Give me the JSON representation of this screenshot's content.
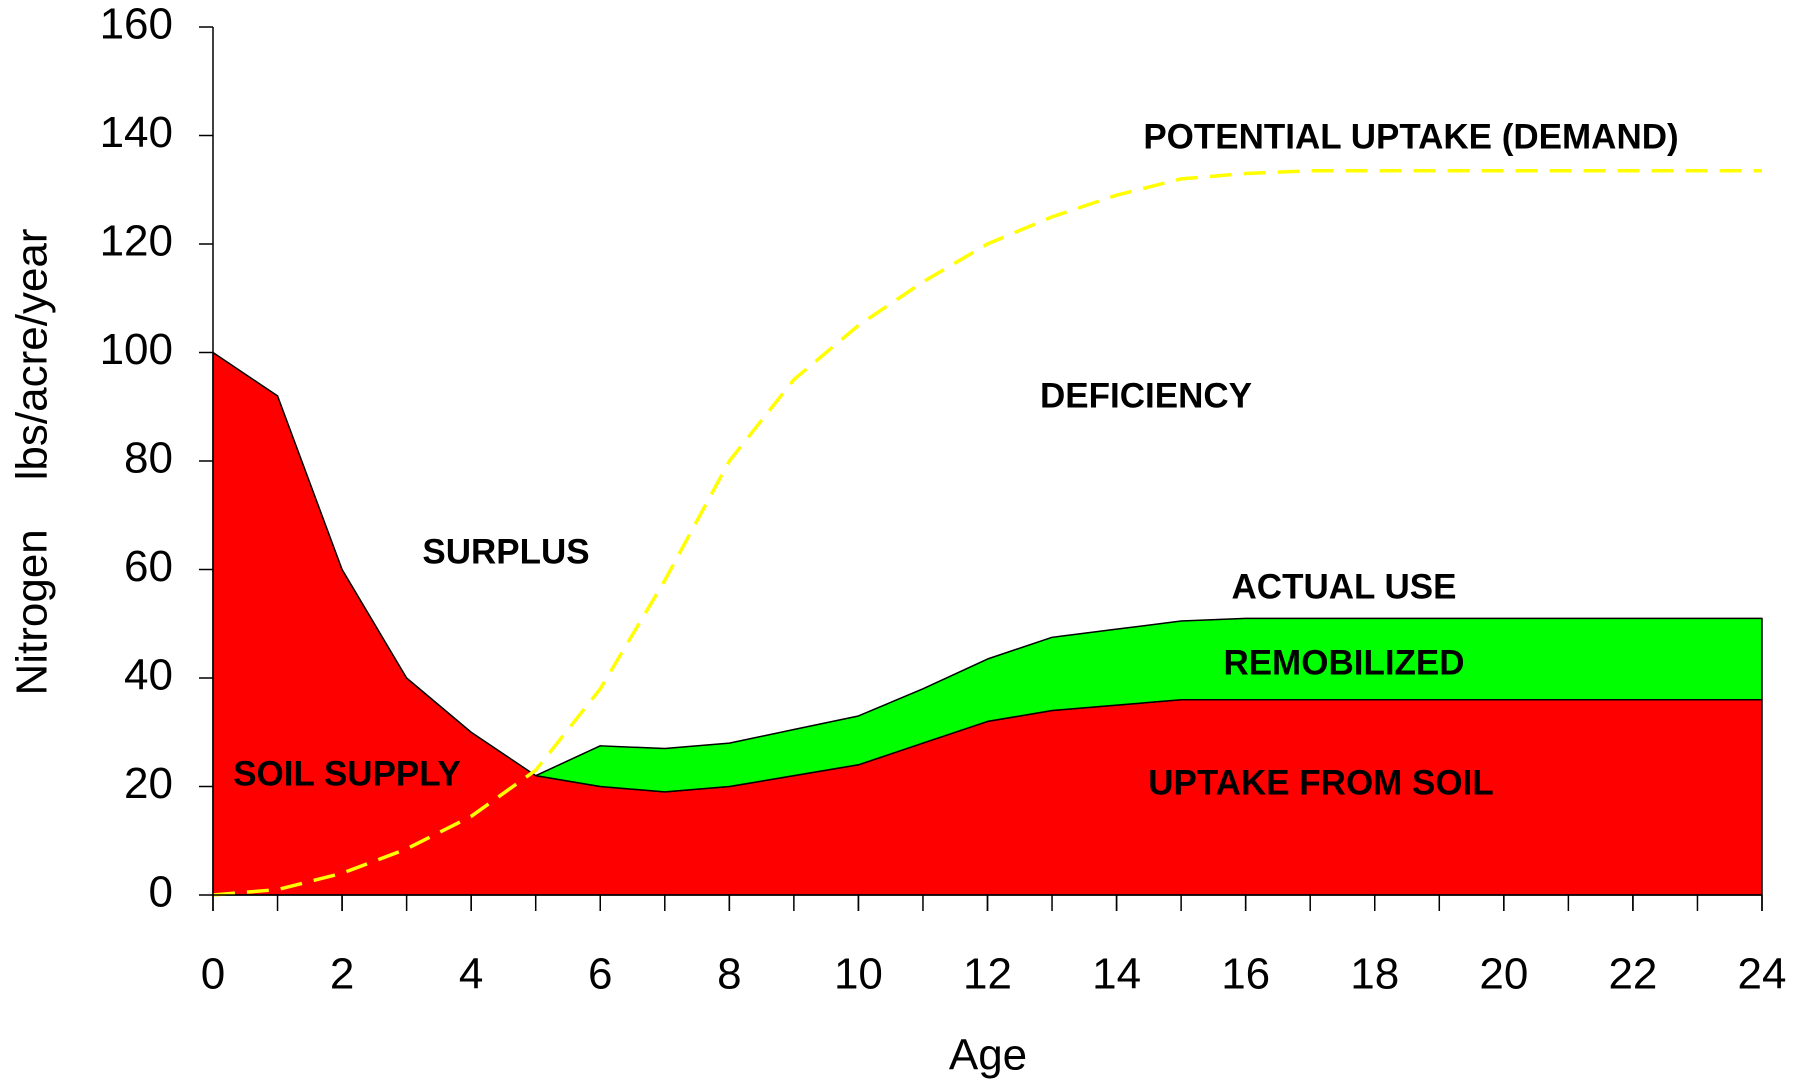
{
  "chart_data": {
    "type": "area",
    "x": [
      0,
      1,
      2,
      3,
      4,
      5,
      6,
      7,
      8,
      9,
      10,
      11,
      12,
      13,
      14,
      15,
      16,
      17,
      18,
      19,
      20,
      21,
      22,
      23,
      24
    ],
    "series": [
      {
        "color": "#ff0000",
        "stack": true,
        "values": [
          100,
          92,
          60,
          40,
          30,
          22,
          20,
          19,
          20,
          22,
          24,
          28,
          32,
          34,
          35,
          36,
          36,
          36,
          36,
          36,
          36,
          36,
          36,
          36,
          36
        ]
      },
      {
        "color": "#00ff00",
        "stack": true,
        "values": [
          null,
          null,
          null,
          null,
          null,
          0,
          7.5,
          8,
          8,
          8.5,
          9,
          10,
          11.5,
          13.5,
          14,
          14.5,
          15,
          15,
          15,
          15,
          15,
          15,
          15,
          15,
          15
        ]
      },
      {
        "color": "#ffff00",
        "dashed": true,
        "values": [
          0,
          1,
          4,
          8.5,
          14.5,
          23,
          38,
          58,
          80,
          95,
          105,
          113,
          120,
          125,
          129,
          132,
          133,
          133.5,
          133.5,
          133.5,
          133.5,
          133.5,
          133.5,
          133.5,
          133.5
        ]
      }
    ],
    "xlabel": "Age",
    "ylabel": "Nitrogen    lbs/acre/year",
    "xlim": [
      0,
      24
    ],
    "xticks": [
      0,
      2,
      4,
      6,
      8,
      10,
      12,
      14,
      16,
      18,
      20,
      22,
      24
    ],
    "ylim": [
      0,
      160
    ],
    "yticks": [
      0,
      20,
      40,
      60,
      80,
      100,
      120,
      140,
      160
    ],
    "annotations": [
      "POTENTIAL UPTAKE (DEMAND)",
      "DEFICIENCY",
      "SURPLUS",
      "ACTUAL USE",
      "REMOBILIZED",
      "SOIL SUPPLY",
      "UPTAKE FROM SOIL"
    ]
  }
}
